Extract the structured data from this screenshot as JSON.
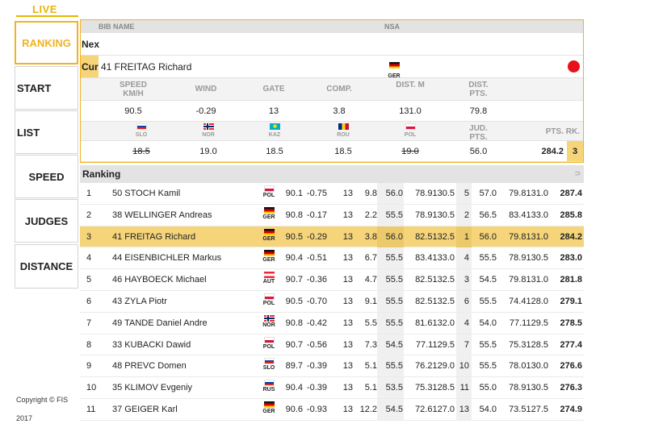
{
  "nav": {
    "live": "LIVE",
    "ranking": "RANKING",
    "start": "START",
    "list": "LIST",
    "speed": "SPEED",
    "judges": "JUDGES",
    "distance": "DISTANCE"
  },
  "footer": {
    "copyright": "Copyright © FIS",
    "year": "2017"
  },
  "current": {
    "header": {
      "bib_name": "BIB NAME",
      "nsa": "NSA"
    },
    "next_label": "Nex",
    "cur_label": "Cur",
    "jumper": "41 FREITAG Richard",
    "nsa": "GER",
    "labels": {
      "speed": "SPEED KM/H",
      "wind": "WIND",
      "gate": "GATE",
      "comp": "COMP.",
      "dist": "DIST. M",
      "dist_pts": "DIST. PTS.",
      "jud_pts": "JUD. PTS.",
      "pts_rk": "PTS. RK."
    },
    "values": {
      "speed": "90.5",
      "wind": "-0.29",
      "gate": "13",
      "comp": "3.8",
      "dist": "131.0",
      "dist_pts": "79.8"
    },
    "judges": [
      {
        "nsa": "SLO",
        "score": "18.5",
        "struck": true
      },
      {
        "nsa": "NOR",
        "score": "19.0",
        "struck": false
      },
      {
        "nsa": "KAZ",
        "score": "18.5",
        "struck": false
      },
      {
        "nsa": "ROU",
        "score": "18.5",
        "struck": false
      },
      {
        "nsa": "POL",
        "score": "19.0",
        "struck": true
      }
    ],
    "jud_pts": "56.0",
    "total": "284.2",
    "rank": "3"
  },
  "ranking": {
    "title": "Ranking",
    "refresh": "⊃",
    "rows": [
      {
        "rk": "1",
        "bib_name": "50 STOCH Kamil",
        "nsa": "POL",
        "speed": "90.1",
        "wind": "-0.75",
        "gate": "13",
        "comp": "9.8",
        "a": "56.0",
        "b": "78.9130.5",
        "c": "5",
        "d": "57.0",
        "e": "79.8131.0",
        "total": "287.4"
      },
      {
        "rk": "2",
        "bib_name": "38 WELLINGER Andreas",
        "nsa": "GER",
        "speed": "90.8",
        "wind": "-0.17",
        "gate": "13",
        "comp": "2.2",
        "a": "55.5",
        "b": "78.9130.5",
        "c": "2",
        "d": "56.5",
        "e": "83.4133.0",
        "total": "285.8"
      },
      {
        "rk": "3",
        "bib_name": "41 FREITAG Richard",
        "nsa": "GER",
        "speed": "90.5",
        "wind": "-0.29",
        "gate": "13",
        "comp": "3.8",
        "a": "56.0",
        "b": "82.5132.5",
        "c": "1",
        "d": "56.0",
        "e": "79.8131.0",
        "total": "284.2",
        "highlight": true
      },
      {
        "rk": "4",
        "bib_name": "44 EISENBICHLER Markus",
        "nsa": "GER",
        "speed": "90.4",
        "wind": "-0.51",
        "gate": "13",
        "comp": "6.7",
        "a": "55.5",
        "b": "83.4133.0",
        "c": "4",
        "d": "55.5",
        "e": "78.9130.5",
        "total": "283.0"
      },
      {
        "rk": "5",
        "bib_name": "46 HAYBOECK Michael",
        "nsa": "AUT",
        "speed": "90.7",
        "wind": "-0.36",
        "gate": "13",
        "comp": "4.7",
        "a": "55.5",
        "b": "82.5132.5",
        "c": "3",
        "d": "54.5",
        "e": "79.8131.0",
        "total": "281.8"
      },
      {
        "rk": "6",
        "bib_name": "43 ZYLA Piotr",
        "nsa": "POL",
        "speed": "90.5",
        "wind": "-0.70",
        "gate": "13",
        "comp": "9.1",
        "a": "55.5",
        "b": "82.5132.5",
        "c": "6",
        "d": "55.5",
        "e": "74.4128.0",
        "total": "279.1"
      },
      {
        "rk": "7",
        "bib_name": "49 TANDE Daniel Andre",
        "nsa": "NOR",
        "speed": "90.8",
        "wind": "-0.42",
        "gate": "13",
        "comp": "5.5",
        "a": "55.5",
        "b": "81.6132.0",
        "c": "4",
        "d": "54.0",
        "e": "77.1129.5",
        "total": "278.5"
      },
      {
        "rk": "8",
        "bib_name": "33 KUBACKI Dawid",
        "nsa": "POL",
        "speed": "90.7",
        "wind": "-0.56",
        "gate": "13",
        "comp": "7.3",
        "a": "54.5",
        "b": "77.1129.5",
        "c": "7",
        "d": "55.5",
        "e": "75.3128.5",
        "total": "277.4"
      },
      {
        "rk": "9",
        "bib_name": "48 PREVC Domen",
        "nsa": "SLO",
        "speed": "89.7",
        "wind": "-0.39",
        "gate": "13",
        "comp": "5.1",
        "a": "55.5",
        "b": "76.2129.0",
        "c": "10",
        "d": "55.5",
        "e": "78.0130.0",
        "total": "276.6"
      },
      {
        "rk": "10",
        "bib_name": "35 KLIMOV Evgeniy",
        "nsa": "RUS",
        "speed": "90.4",
        "wind": "-0.39",
        "gate": "13",
        "comp": "5.1",
        "a": "53.5",
        "b": "75.3128.5",
        "c": "11",
        "d": "55.0",
        "e": "78.9130.5",
        "total": "276.3"
      },
      {
        "rk": "11",
        "bib_name": "37 GEIGER Karl",
        "nsa": "GER",
        "speed": "90.6",
        "wind": "-0.93",
        "gate": "13",
        "comp": "12.2",
        "a": "54.5",
        "b": "72.6127.0",
        "c": "13",
        "d": "54.0",
        "e": "73.5127.5",
        "total": "274.9"
      }
    ]
  }
}
